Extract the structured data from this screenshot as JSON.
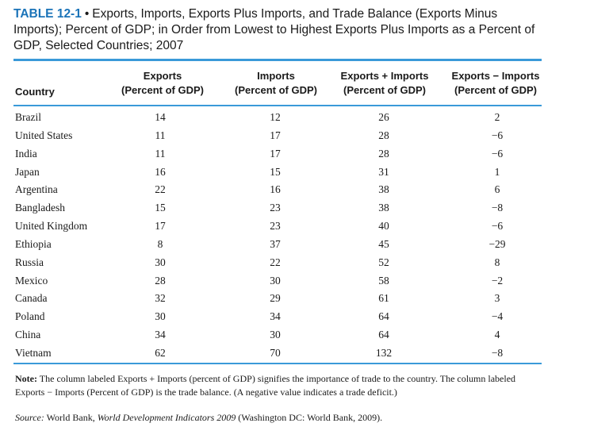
{
  "caption": {
    "tag": "TABLE 12-1",
    "bullet": "•",
    "text": "Exports, Imports, Exports Plus Imports, and Trade Balance (Exports Minus Imports); Percent of GDP; in Order from Lowest to Highest Exports Plus Imports as a Percent of GDP, Selected Countries; 2007"
  },
  "headers": {
    "country": "Country",
    "col1": [
      "Exports",
      "(Percent of GDP)"
    ],
    "col2": [
      "Imports",
      "(Percent of GDP)"
    ],
    "col3": [
      "Exports + Imports",
      "(Percent of GDP)"
    ],
    "col4": [
      "Exports − Imports",
      "(Percent of GDP)"
    ]
  },
  "rows": [
    {
      "country": "Brazil",
      "exports": "14",
      "imports": "12",
      "sum": "26",
      "balance": "2"
    },
    {
      "country": "United States",
      "exports": "11",
      "imports": "17",
      "sum": "28",
      "balance": "−6"
    },
    {
      "country": "India",
      "exports": "11",
      "imports": "17",
      "sum": "28",
      "balance": "−6"
    },
    {
      "country": "Japan",
      "exports": "16",
      "imports": "15",
      "sum": "31",
      "balance": "1"
    },
    {
      "country": "Argentina",
      "exports": "22",
      "imports": "16",
      "sum": "38",
      "balance": "6"
    },
    {
      "country": "Bangladesh",
      "exports": "15",
      "imports": "23",
      "sum": "38",
      "balance": "−8"
    },
    {
      "country": "United Kingdom",
      "exports": "17",
      "imports": "23",
      "sum": "40",
      "balance": "−6"
    },
    {
      "country": "Ethiopia",
      "exports": "8",
      "imports": "37",
      "sum": "45",
      "balance": "−29"
    },
    {
      "country": "Russia",
      "exports": "30",
      "imports": "22",
      "sum": "52",
      "balance": "8"
    },
    {
      "country": "Mexico",
      "exports": "28",
      "imports": "30",
      "sum": "58",
      "balance": "−2"
    },
    {
      "country": "Canada",
      "exports": "32",
      "imports": "29",
      "sum": "61",
      "balance": "3"
    },
    {
      "country": "Poland",
      "exports": "30",
      "imports": "34",
      "sum": "64",
      "balance": "−4"
    },
    {
      "country": "China",
      "exports": "34",
      "imports": "30",
      "sum": "64",
      "balance": "4"
    },
    {
      "country": "Vietnam",
      "exports": "62",
      "imports": "70",
      "sum": "132",
      "balance": "−8"
    }
  ],
  "note": {
    "label": "Note:",
    "text": "The column labeled Exports + Imports (percent of GDP) signifies the importance of trade to the country. The column labeled Exports − Imports (Percent of GDP) is the trade balance. (A negative value indicates a trade deficit.)"
  },
  "source": {
    "label": "Source:",
    "text_before": "World Bank,",
    "title": "World Development Indicators 2009",
    "text_after": "(Washington DC: World Bank, 2009)."
  }
}
